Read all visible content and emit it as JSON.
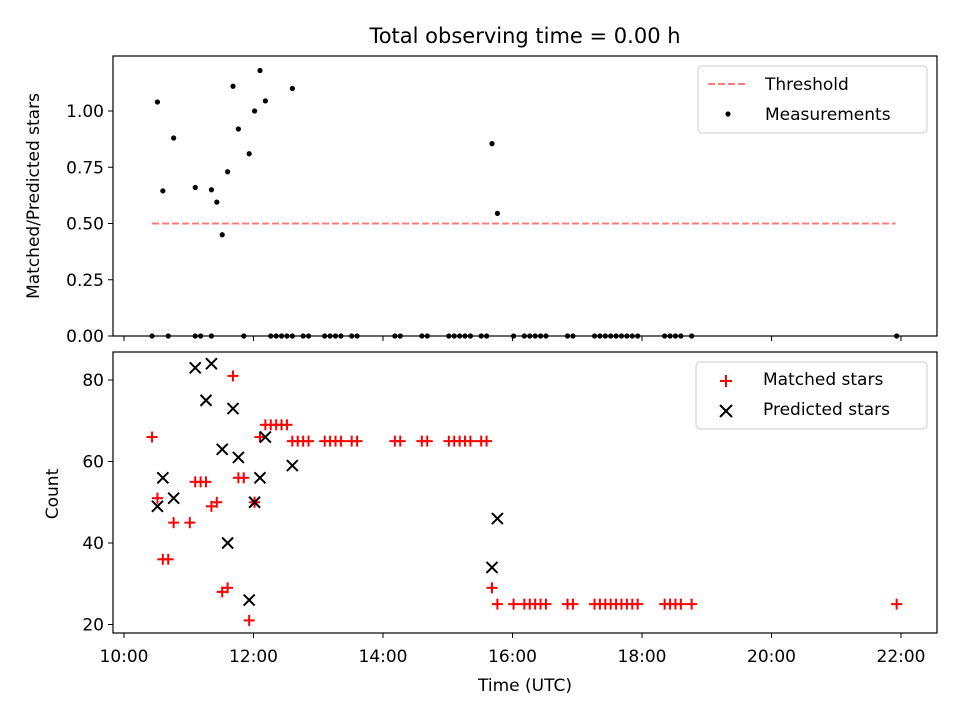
{
  "chart_data": [
    {
      "type": "scatter",
      "title": "Total observing time = 0.00 h",
      "xlabel": "",
      "ylabel": "Matched/Predicted stars",
      "xlim": [
        "10:00",
        "22:30"
      ],
      "ylim": [
        0,
        1.25
      ],
      "yticks": [
        "0.00",
        "0.25",
        "0.50",
        "0.75",
        "1.00"
      ],
      "legend_position": "top-right",
      "series": [
        {
          "name": "Threshold",
          "kind": "dashed-line",
          "color": "#ff7a7a",
          "points": [
            [
              "10:26",
              0.5
            ],
            [
              "21:55",
              0.5
            ]
          ]
        },
        {
          "name": "Measurements",
          "kind": "dot",
          "color": "#000000",
          "points": [
            [
              "10:31",
              1.04
            ],
            [
              "10:36",
              0.645
            ],
            [
              "10:46",
              0.88
            ],
            [
              "11:06",
              0.66
            ],
            [
              "11:21",
              0.65
            ],
            [
              "11:26",
              0.595
            ],
            [
              "11:31",
              0.45
            ],
            [
              "11:36",
              0.73
            ],
            [
              "11:41",
              1.11
            ],
            [
              "11:46",
              0.92
            ],
            [
              "11:56",
              0.81
            ],
            [
              "12:01",
              1.0
            ],
            [
              "12:06",
              1.18
            ],
            [
              "12:11",
              1.045
            ],
            [
              "12:36",
              1.1
            ],
            [
              "15:41",
              0.855
            ],
            [
              "15:46",
              0.545
            ],
            [
              "10:26",
              0
            ],
            [
              "10:41",
              0
            ],
            [
              "11:06",
              0
            ],
            [
              "11:11",
              0
            ],
            [
              "11:21",
              0
            ],
            [
              "11:51",
              0
            ],
            [
              "12:16",
              0
            ],
            [
              "12:21",
              0
            ],
            [
              "12:26",
              0
            ],
            [
              "12:31",
              0
            ],
            [
              "12:36",
              0
            ],
            [
              "12:46",
              0
            ],
            [
              "12:51",
              0
            ],
            [
              "13:06",
              0
            ],
            [
              "13:11",
              0
            ],
            [
              "13:16",
              0
            ],
            [
              "13:21",
              0
            ],
            [
              "13:31",
              0
            ],
            [
              "13:36",
              0
            ],
            [
              "14:11",
              0
            ],
            [
              "14:16",
              0
            ],
            [
              "14:36",
              0
            ],
            [
              "14:41",
              0
            ],
            [
              "15:01",
              0
            ],
            [
              "15:06",
              0
            ],
            [
              "15:11",
              0
            ],
            [
              "15:16",
              0
            ],
            [
              "15:21",
              0
            ],
            [
              "15:31",
              0
            ],
            [
              "15:36",
              0
            ],
            [
              "16:01",
              0
            ],
            [
              "16:11",
              0
            ],
            [
              "16:16",
              0
            ],
            [
              "16:21",
              0
            ],
            [
              "16:26",
              0
            ],
            [
              "16:31",
              0
            ],
            [
              "16:51",
              0
            ],
            [
              "16:56",
              0
            ],
            [
              "17:16",
              0
            ],
            [
              "17:21",
              0
            ],
            [
              "17:26",
              0
            ],
            [
              "17:31",
              0
            ],
            [
              "17:36",
              0
            ],
            [
              "17:41",
              0
            ],
            [
              "17:46",
              0
            ],
            [
              "17:51",
              0
            ],
            [
              "17:56",
              0
            ],
            [
              "18:21",
              0
            ],
            [
              "18:26",
              0
            ],
            [
              "18:31",
              0
            ],
            [
              "18:36",
              0
            ],
            [
              "18:46",
              0
            ],
            [
              "21:56",
              0
            ]
          ]
        }
      ]
    },
    {
      "type": "scatter",
      "title": "",
      "xlabel": "Time (UTC)",
      "ylabel": "Count",
      "xlim": [
        "10:00",
        "22:30"
      ],
      "ylim": [
        18,
        88
      ],
      "yticks": [
        "20",
        "40",
        "60",
        "80"
      ],
      "xticks": [
        "10:00",
        "12:00",
        "14:00",
        "16:00",
        "18:00",
        "20:00",
        "22:00"
      ],
      "legend_position": "top-right",
      "series": [
        {
          "name": "Matched stars",
          "kind": "plus",
          "color": "#ff0000",
          "points": [
            [
              "10:26",
              66
            ],
            [
              "10:31",
              51
            ],
            [
              "10:36",
              36
            ],
            [
              "10:41",
              36
            ],
            [
              "10:46",
              45
            ],
            [
              "11:01",
              45
            ],
            [
              "11:06",
              55
            ],
            [
              "11:11",
              55
            ],
            [
              "11:16",
              55
            ],
            [
              "11:21",
              49
            ],
            [
              "11:26",
              50
            ],
            [
              "11:31",
              28
            ],
            [
              "11:36",
              29
            ],
            [
              "11:41",
              81
            ],
            [
              "11:46",
              56
            ],
            [
              "11:51",
              56
            ],
            [
              "11:56",
              21
            ],
            [
              "12:01",
              50
            ],
            [
              "12:06",
              66
            ],
            [
              "12:11",
              69
            ],
            [
              "12:16",
              69
            ],
            [
              "12:21",
              69
            ],
            [
              "12:26",
              69
            ],
            [
              "12:31",
              69
            ],
            [
              "12:36",
              65
            ],
            [
              "12:41",
              65
            ],
            [
              "12:46",
              65
            ],
            [
              "12:51",
              65
            ],
            [
              "13:06",
              65
            ],
            [
              "13:11",
              65
            ],
            [
              "13:16",
              65
            ],
            [
              "13:21",
              65
            ],
            [
              "13:31",
              65
            ],
            [
              "13:36",
              65
            ],
            [
              "14:11",
              65
            ],
            [
              "14:16",
              65
            ],
            [
              "14:36",
              65
            ],
            [
              "14:41",
              65
            ],
            [
              "15:01",
              65
            ],
            [
              "15:06",
              65
            ],
            [
              "15:11",
              65
            ],
            [
              "15:16",
              65
            ],
            [
              "15:21",
              65
            ],
            [
              "15:31",
              65
            ],
            [
              "15:36",
              65
            ],
            [
              "15:41",
              29
            ],
            [
              "15:46",
              25
            ],
            [
              "16:01",
              25
            ],
            [
              "16:11",
              25
            ],
            [
              "16:16",
              25
            ],
            [
              "16:21",
              25
            ],
            [
              "16:26",
              25
            ],
            [
              "16:31",
              25
            ],
            [
              "16:51",
              25
            ],
            [
              "16:56",
              25
            ],
            [
              "17:16",
              25
            ],
            [
              "17:21",
              25
            ],
            [
              "17:26",
              25
            ],
            [
              "17:31",
              25
            ],
            [
              "17:36",
              25
            ],
            [
              "17:41",
              25
            ],
            [
              "17:46",
              25
            ],
            [
              "17:51",
              25
            ],
            [
              "17:56",
              25
            ],
            [
              "18:21",
              25
            ],
            [
              "18:26",
              25
            ],
            [
              "18:31",
              25
            ],
            [
              "18:36",
              25
            ],
            [
              "18:46",
              25
            ],
            [
              "21:56",
              25
            ]
          ]
        },
        {
          "name": "Predicted stars",
          "kind": "x",
          "color": "#000000",
          "points": [
            [
              "10:31",
              49
            ],
            [
              "10:36",
              56
            ],
            [
              "10:46",
              51
            ],
            [
              "11:06",
              83
            ],
            [
              "11:16",
              75
            ],
            [
              "11:21",
              84
            ],
            [
              "11:31",
              63
            ],
            [
              "11:36",
              40
            ],
            [
              "11:41",
              73
            ],
            [
              "11:46",
              61
            ],
            [
              "11:56",
              26
            ],
            [
              "12:01",
              50
            ],
            [
              "12:06",
              56
            ],
            [
              "12:11",
              66
            ],
            [
              "12:36",
              59
            ],
            [
              "15:41",
              34
            ],
            [
              "15:46",
              46
            ]
          ]
        }
      ]
    }
  ]
}
